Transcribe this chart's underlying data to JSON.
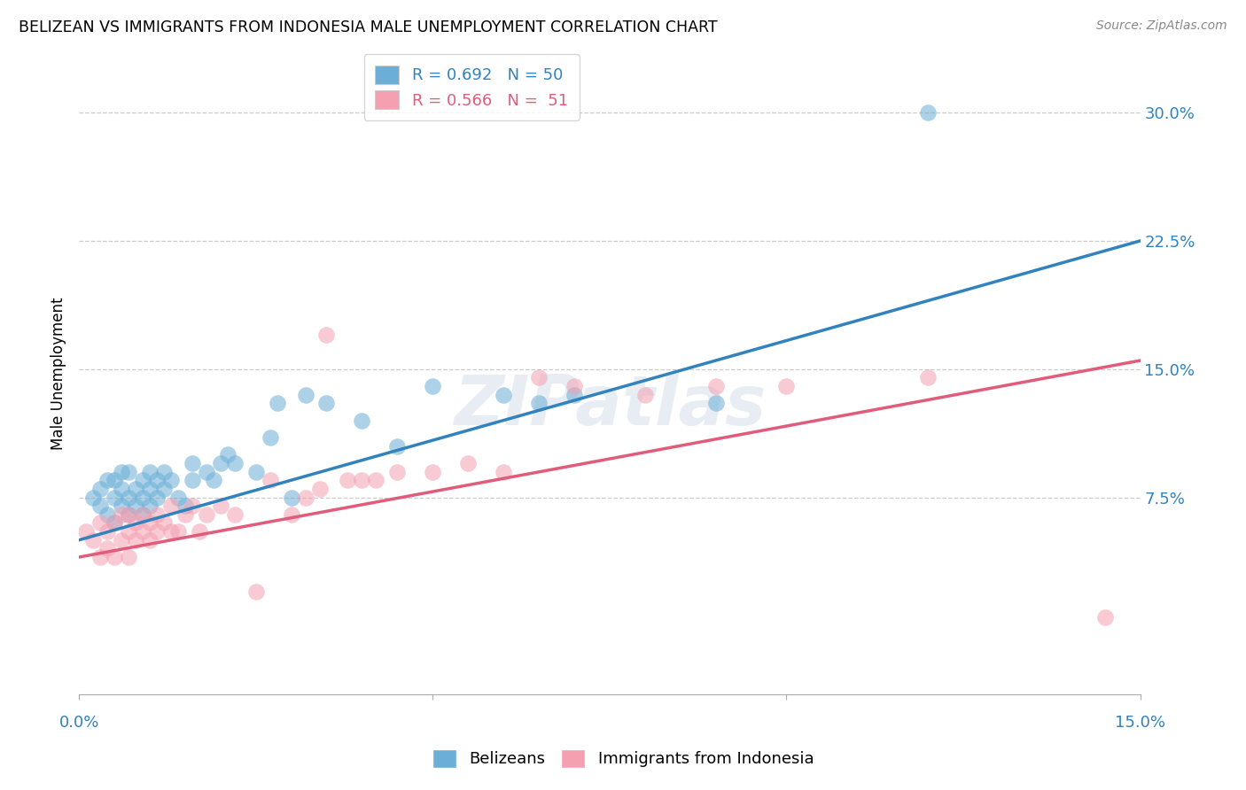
{
  "title": "BELIZEAN VS IMMIGRANTS FROM INDONESIA MALE UNEMPLOYMENT CORRELATION CHART",
  "source": "Source: ZipAtlas.com",
  "ylabel": "Male Unemployment",
  "ytick_labels": [
    "7.5%",
    "15.0%",
    "22.5%",
    "30.0%"
  ],
  "ytick_values": [
    0.075,
    0.15,
    0.225,
    0.3
  ],
  "xlim": [
    0.0,
    0.15
  ],
  "ylim": [
    -0.04,
    0.335
  ],
  "blue_color": "#6baed6",
  "pink_color": "#f4a0b0",
  "blue_line_color": "#3182bd",
  "pink_line_color": "#e05c7a",
  "legend_blue_label": "R = 0.692   N = 50",
  "legend_pink_label": "R = 0.566   N =  51",
  "belizeans_label": "Belizeans",
  "indonesia_label": "Immigrants from Indonesia",
  "watermark": "ZIPatlas",
  "blue_line": [
    0.0,
    0.05,
    0.15,
    0.225
  ],
  "pink_line": [
    0.0,
    0.04,
    0.15,
    0.155
  ],
  "blue_scatter_x": [
    0.002,
    0.003,
    0.003,
    0.004,
    0.004,
    0.005,
    0.005,
    0.005,
    0.006,
    0.006,
    0.006,
    0.007,
    0.007,
    0.007,
    0.008,
    0.008,
    0.009,
    0.009,
    0.009,
    0.01,
    0.01,
    0.01,
    0.011,
    0.011,
    0.012,
    0.012,
    0.013,
    0.014,
    0.015,
    0.016,
    0.016,
    0.018,
    0.019,
    0.02,
    0.021,
    0.022,
    0.025,
    0.027,
    0.028,
    0.03,
    0.032,
    0.035,
    0.04,
    0.045,
    0.05,
    0.06,
    0.065,
    0.07,
    0.09,
    0.12
  ],
  "blue_scatter_y": [
    0.075,
    0.07,
    0.08,
    0.065,
    0.085,
    0.06,
    0.075,
    0.085,
    0.07,
    0.08,
    0.09,
    0.065,
    0.075,
    0.09,
    0.07,
    0.08,
    0.065,
    0.075,
    0.085,
    0.07,
    0.08,
    0.09,
    0.075,
    0.085,
    0.08,
    0.09,
    0.085,
    0.075,
    0.07,
    0.085,
    0.095,
    0.09,
    0.085,
    0.095,
    0.1,
    0.095,
    0.09,
    0.11,
    0.13,
    0.075,
    0.135,
    0.13,
    0.12,
    0.105,
    0.14,
    0.135,
    0.13,
    0.135,
    0.13,
    0.3
  ],
  "pink_scatter_x": [
    0.001,
    0.002,
    0.003,
    0.003,
    0.004,
    0.004,
    0.005,
    0.005,
    0.006,
    0.006,
    0.007,
    0.007,
    0.007,
    0.008,
    0.008,
    0.009,
    0.009,
    0.01,
    0.01,
    0.011,
    0.011,
    0.012,
    0.013,
    0.013,
    0.014,
    0.015,
    0.016,
    0.017,
    0.018,
    0.02,
    0.022,
    0.025,
    0.027,
    0.03,
    0.032,
    0.034,
    0.035,
    0.038,
    0.04,
    0.042,
    0.045,
    0.05,
    0.055,
    0.06,
    0.065,
    0.07,
    0.08,
    0.09,
    0.1,
    0.12,
    0.145
  ],
  "pink_scatter_y": [
    0.055,
    0.05,
    0.04,
    0.06,
    0.045,
    0.055,
    0.04,
    0.06,
    0.05,
    0.065,
    0.04,
    0.055,
    0.065,
    0.05,
    0.06,
    0.055,
    0.065,
    0.05,
    0.06,
    0.055,
    0.065,
    0.06,
    0.055,
    0.07,
    0.055,
    0.065,
    0.07,
    0.055,
    0.065,
    0.07,
    0.065,
    0.02,
    0.085,
    0.065,
    0.075,
    0.08,
    0.17,
    0.085,
    0.085,
    0.085,
    0.09,
    0.09,
    0.095,
    0.09,
    0.145,
    0.14,
    0.135,
    0.14,
    0.14,
    0.145,
    0.005
  ]
}
